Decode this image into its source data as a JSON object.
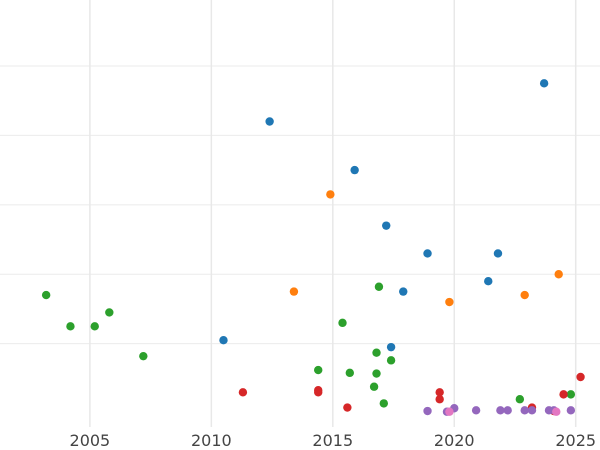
{
  "chart_data": {
    "type": "scatter",
    "title": "",
    "xlabel": "",
    "ylabel": "",
    "x_ticks": [
      2005,
      2010,
      2015,
      2020,
      2025
    ],
    "xlim": [
      2001.3,
      2026.0
    ],
    "ylim": [
      -0.2,
      5.95
    ],
    "grid": true,
    "legend": "none",
    "series": [
      {
        "color": "#1f77b4",
        "points": [
          [
            2012.4,
            4.2
          ],
          [
            2015.9,
            3.5
          ],
          [
            2017.2,
            2.7
          ],
          [
            2018.9,
            2.3
          ],
          [
            2021.8,
            2.3
          ],
          [
            2021.4,
            1.9
          ],
          [
            2017.9,
            1.75
          ],
          [
            2023.7,
            4.75
          ],
          [
            2010.5,
            1.05
          ],
          [
            2017.4,
            0.95
          ]
        ]
      },
      {
        "color": "#ff7f0e",
        "points": [
          [
            2014.9,
            3.15
          ],
          [
            2013.4,
            1.75
          ],
          [
            2019.8,
            1.6
          ],
          [
            2022.9,
            1.7
          ],
          [
            2024.3,
            2.0
          ]
        ]
      },
      {
        "color": "#2ca02c",
        "points": [
          [
            2003.2,
            1.7
          ],
          [
            2004.2,
            1.25
          ],
          [
            2005.2,
            1.25
          ],
          [
            2005.8,
            1.45
          ],
          [
            2007.2,
            0.82
          ],
          [
            2014.4,
            0.62
          ],
          [
            2015.4,
            1.3
          ],
          [
            2015.7,
            0.58
          ],
          [
            2016.8,
            0.87
          ],
          [
            2016.9,
            1.82
          ],
          [
            2017.4,
            0.76
          ],
          [
            2016.8,
            0.57
          ],
          [
            2016.7,
            0.38
          ],
          [
            2017.1,
            0.14
          ],
          [
            2022.7,
            0.2
          ],
          [
            2024.8,
            0.27
          ]
        ]
      },
      {
        "color": "#d62728",
        "points": [
          [
            2011.3,
            0.3
          ],
          [
            2014.4,
            0.33
          ],
          [
            2014.4,
            0.3
          ],
          [
            2015.6,
            0.08
          ],
          [
            2019.4,
            0.3
          ],
          [
            2019.4,
            0.2
          ],
          [
            2023.2,
            0.08
          ],
          [
            2024.5,
            0.27
          ],
          [
            2025.2,
            0.52
          ],
          [
            2024.1,
            0.03
          ]
        ]
      },
      {
        "color": "#9467bd",
        "points": [
          [
            2018.9,
            0.03
          ],
          [
            2020.0,
            0.07
          ],
          [
            2020.9,
            0.04
          ],
          [
            2021.9,
            0.04
          ],
          [
            2022.2,
            0.04
          ],
          [
            2022.9,
            0.04
          ],
          [
            2023.2,
            0.04
          ],
          [
            2023.9,
            0.04
          ],
          [
            2024.1,
            0.04
          ],
          [
            2024.8,
            0.04
          ],
          [
            2019.7,
            0.02
          ]
        ]
      },
      {
        "color": "#e377c2",
        "points": [
          [
            2019.8,
            0.02
          ],
          [
            2024.2,
            0.02
          ]
        ]
      }
    ]
  }
}
